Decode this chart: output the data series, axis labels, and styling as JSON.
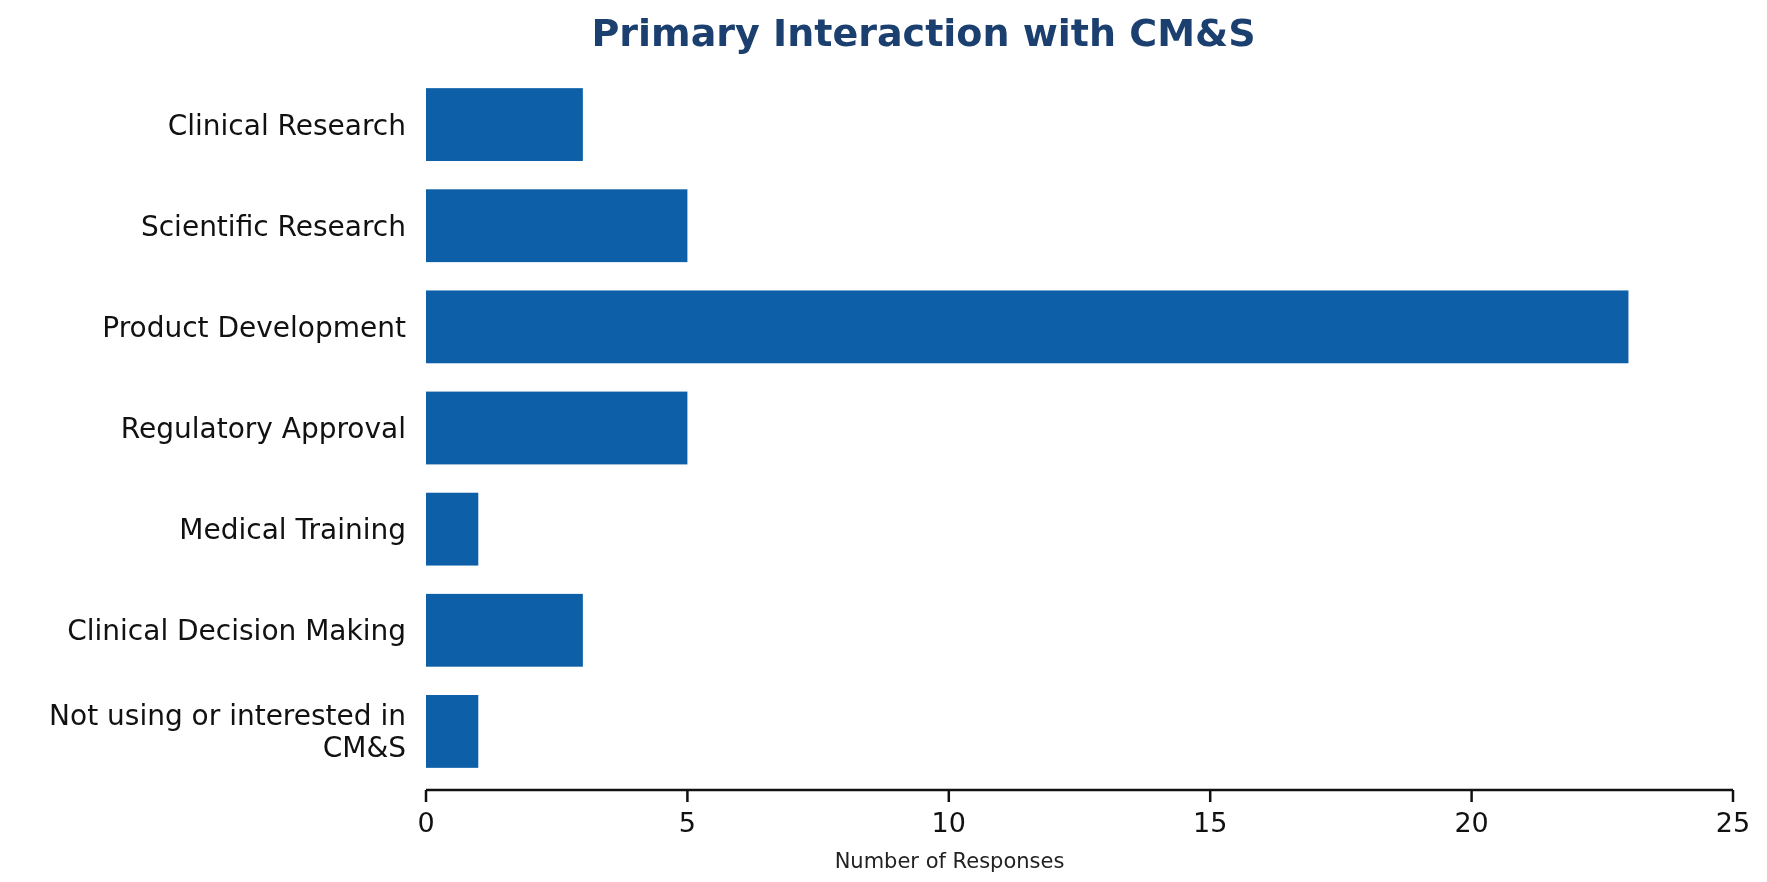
{
  "chart_data": {
    "type": "bar",
    "title": "Primary Interaction with CM&S",
    "orientation": "horizontal",
    "categories": [
      "Clinical Research",
      "Scientific Research",
      "Product Development",
      "Regulatory Approval",
      "Medical Training",
      "Clinical Decision Making",
      "Not using or interested in CM&S"
    ],
    "values": [
      3,
      5,
      23,
      5,
      1,
      3,
      1
    ],
    "color": "#0d5fa7",
    "xlabel": "Number of Responses",
    "xlim": [
      0,
      25
    ],
    "xticks": [
      0,
      5,
      10,
      15,
      20,
      25
    ],
    "grid": false
  }
}
